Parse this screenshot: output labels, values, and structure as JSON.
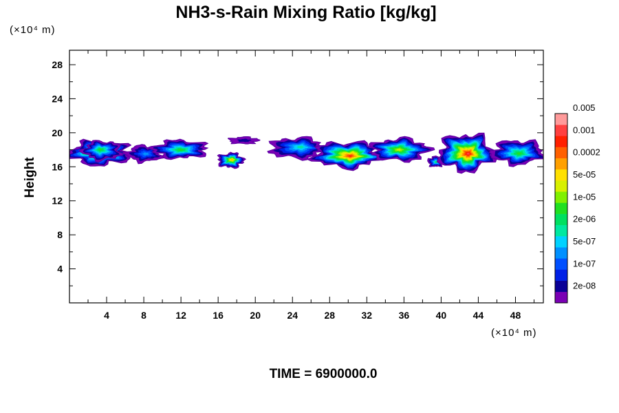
{
  "chart_data": {
    "type": "heatmap",
    "title": "NH3-s-Rain Mixing Ratio [kg/kg]",
    "ylabel": "Height",
    "xlabel": "",
    "x_unit_label": "(×10⁴ m)",
    "y_unit_label": "(×10⁴ m)",
    "footer": "TIME = 6900000.0",
    "xlim": [
      0,
      51
    ],
    "ylim": [
      0,
      29.7
    ],
    "x_ticks": [
      4,
      8,
      12,
      16,
      20,
      24,
      28,
      32,
      36,
      40,
      44,
      48
    ],
    "y_ticks": [
      4,
      8,
      12,
      16,
      20,
      24,
      28
    ],
    "colorbar": {
      "colors": [
        "#7a00b4",
        "#0a0096",
        "#0020e6",
        "#0050ff",
        "#0090ff",
        "#00d2ff",
        "#00e8a0",
        "#00e060",
        "#20e020",
        "#80f000",
        "#d8f000",
        "#ffe000",
        "#ffa000",
        "#ff6000",
        "#ff2000",
        "#ff4040",
        "#ff9a9a"
      ],
      "labels": [
        "2e-08",
        "1e-07",
        "5e-07",
        "2e-06",
        "1e-05",
        "5e-05",
        "0.0002",
        "0.001",
        "0.005"
      ]
    },
    "cloud_blobs": [
      {
        "x0": 0.0,
        "x1": 6.5,
        "ybot": 16.2,
        "ytop": 19.0,
        "peak": 13
      },
      {
        "x0": 1.5,
        "x1": 5.5,
        "ybot": 16.8,
        "ytop": 19.0,
        "peak": 8
      },
      {
        "x0": 6.2,
        "x1": 10.0,
        "ybot": 16.6,
        "ytop": 18.5,
        "peak": 4
      },
      {
        "x0": 9.0,
        "x1": 14.8,
        "ybot": 17.0,
        "ytop": 19.1,
        "peak": 8
      },
      {
        "x0": 16.0,
        "x1": 18.7,
        "ybot": 15.9,
        "ytop": 17.6,
        "peak": 12
      },
      {
        "x0": 17.2,
        "x1": 20.3,
        "ybot": 18.7,
        "ytop": 19.5,
        "peak": 1
      },
      {
        "x0": 21.6,
        "x1": 27.5,
        "ybot": 17.0,
        "ytop": 19.4,
        "peak": 6
      },
      {
        "x0": 26.3,
        "x1": 33.5,
        "ybot": 15.9,
        "ytop": 18.9,
        "peak": 14
      },
      {
        "x0": 32.5,
        "x1": 38.6,
        "ybot": 16.7,
        "ytop": 19.3,
        "peak": 10
      },
      {
        "x0": 38.6,
        "x1": 40.2,
        "ybot": 16.0,
        "ytop": 17.2,
        "peak": 7
      },
      {
        "x0": 39.8,
        "x1": 45.5,
        "ybot": 15.5,
        "ytop": 19.8,
        "peak": 15
      },
      {
        "x0": 45.5,
        "x1": 51.0,
        "ybot": 16.3,
        "ytop": 19.1,
        "peak": 8
      }
    ]
  }
}
